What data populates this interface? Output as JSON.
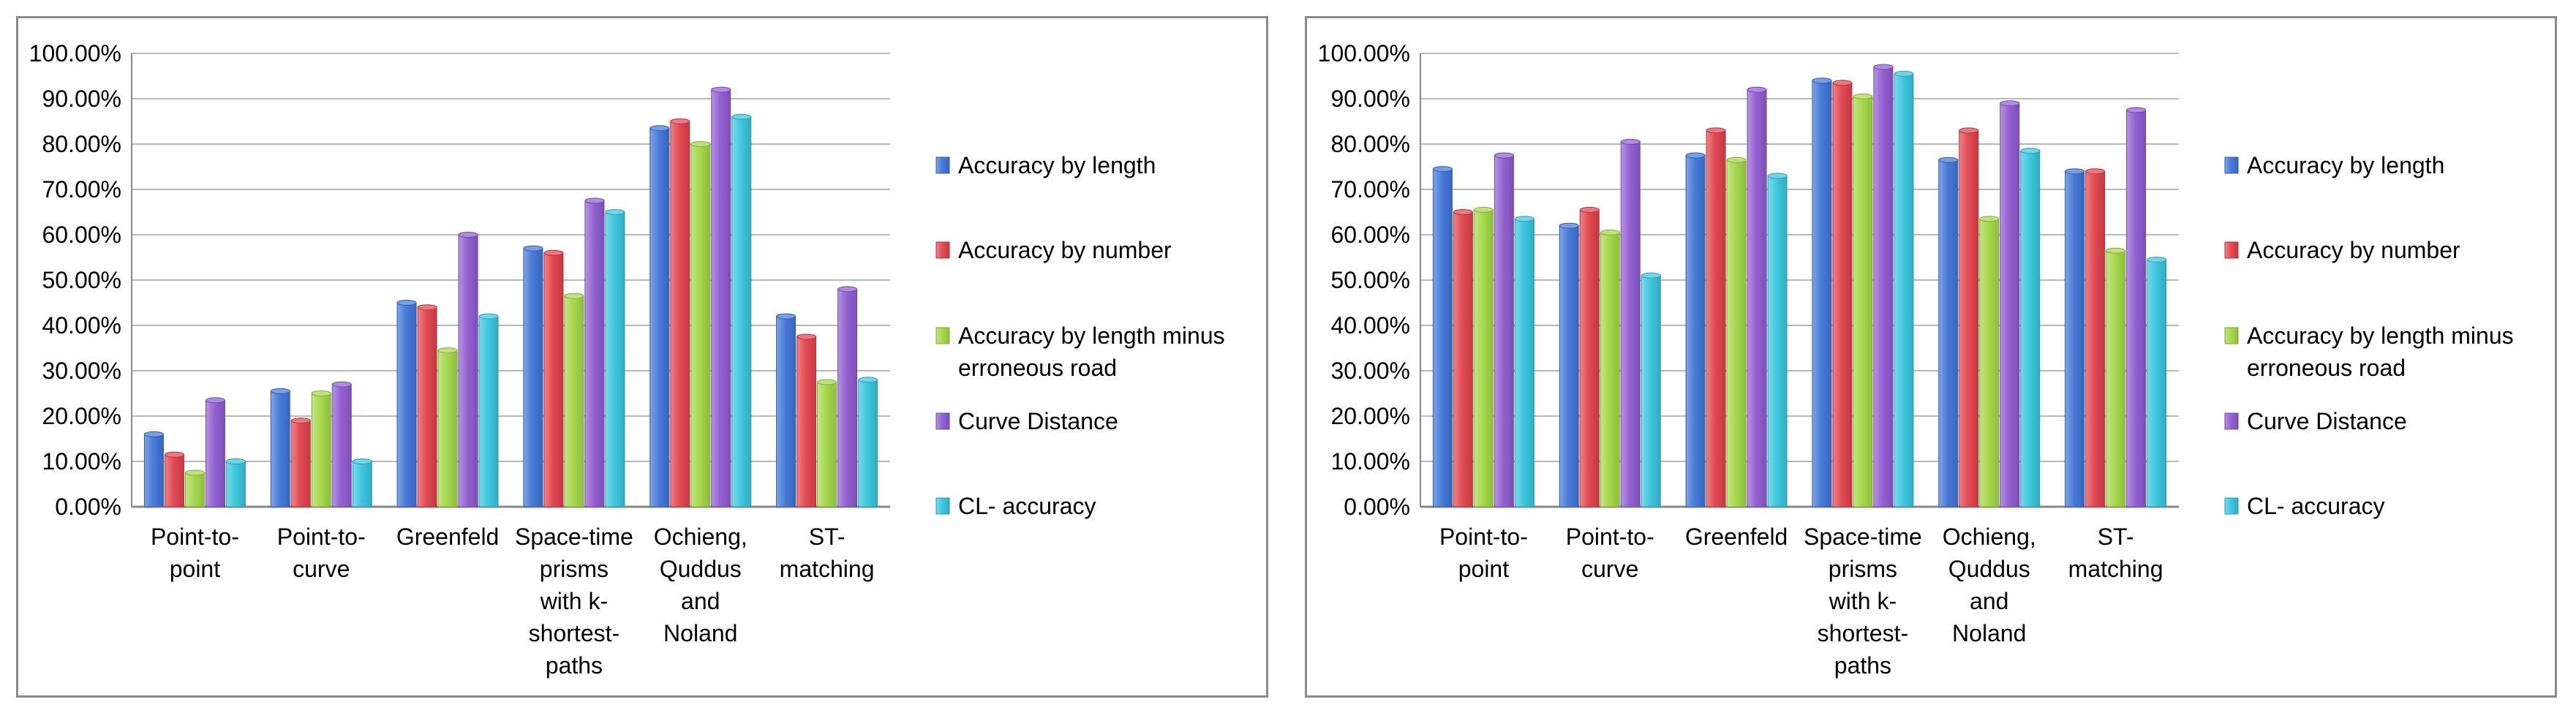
{
  "colors": {
    "Accuracy by length": "#3f74d6",
    "Accuracy by number": "#e0414b",
    "Accuracy by length minus erroneous road": "#a3d646",
    "Curve Distance": "#8e5ad0",
    "CL- accuracy": "#37c4dd"
  },
  "chart_data": [
    {
      "type": "bar",
      "categories": [
        [
          "Point-to-",
          "point"
        ],
        [
          "Point-to-",
          "curve"
        ],
        [
          "Greenfeld"
        ],
        [
          "Space-time",
          "prisms",
          "with k-",
          "shortest-",
          "paths"
        ],
        [
          "Ochieng,",
          "Quddus",
          "and",
          "Noland"
        ],
        [
          "ST-",
          "matching"
        ]
      ],
      "series": [
        {
          "name": "Accuracy by length",
          "values": [
            0.16,
            0.255,
            0.45,
            0.57,
            0.835,
            0.42
          ]
        },
        {
          "name": "Accuracy by number",
          "values": [
            0.115,
            0.19,
            0.44,
            0.56,
            0.85,
            0.375
          ]
        },
        {
          "name": "Accuracy by length minus erroneous road",
          "values": [
            0.075,
            0.25,
            0.345,
            0.465,
            0.8,
            0.275
          ]
        },
        {
          "name": "Curve Distance",
          "values": [
            0.235,
            0.27,
            0.6,
            0.675,
            0.92,
            0.48
          ]
        },
        {
          "name": "CL- accuracy",
          "values": [
            0.1,
            0.1,
            0.42,
            0.65,
            0.86,
            0.28
          ]
        }
      ],
      "legend_lines": [
        [
          "Accuracy by length"
        ],
        [
          "Accuracy by number"
        ],
        [
          "Accuracy by length minus",
          "erroneous road"
        ],
        [
          "Curve Distance"
        ],
        [
          "CL- accuracy"
        ]
      ],
      "yticks": [
        "0.00%",
        "10.00%",
        "20.00%",
        "30.00%",
        "40.00%",
        "50.00%",
        "60.00%",
        "70.00%",
        "80.00%",
        "90.00%",
        "100.00%"
      ],
      "ylim": [
        0,
        1
      ],
      "grid": true,
      "legend_position": "right"
    },
    {
      "type": "bar",
      "categories": [
        [
          "Point-to-",
          "point"
        ],
        [
          "Point-to-",
          "curve"
        ],
        [
          "Greenfeld"
        ],
        [
          "Space-time",
          "prisms",
          "with k-",
          "shortest-",
          "paths"
        ],
        [
          "Ochieng,",
          "Quddus",
          "and",
          "Noland"
        ],
        [
          "ST-",
          "matching"
        ]
      ],
      "series": [
        {
          "name": "Accuracy by length",
          "values": [
            0.745,
            0.62,
            0.775,
            0.94,
            0.765,
            0.74
          ]
        },
        {
          "name": "Accuracy by number",
          "values": [
            0.65,
            0.655,
            0.83,
            0.935,
            0.83,
            0.74
          ]
        },
        {
          "name": "Accuracy by length minus erroneous road",
          "values": [
            0.655,
            0.605,
            0.765,
            0.905,
            0.635,
            0.565
          ]
        },
        {
          "name": "Curve Distance",
          "values": [
            0.775,
            0.805,
            0.92,
            0.97,
            0.89,
            0.875
          ]
        },
        {
          "name": "CL- accuracy",
          "values": [
            0.635,
            0.51,
            0.73,
            0.955,
            0.785,
            0.545
          ]
        }
      ],
      "legend_lines": [
        [
          "Accuracy by length"
        ],
        [
          "Accuracy by number"
        ],
        [
          "Accuracy by length minus",
          "erroneous road"
        ],
        [
          "Curve Distance"
        ],
        [
          "CL- accuracy"
        ]
      ],
      "yticks": [
        "0.00%",
        "10.00%",
        "20.00%",
        "30.00%",
        "40.00%",
        "50.00%",
        "60.00%",
        "70.00%",
        "80.00%",
        "90.00%",
        "100.00%"
      ],
      "ylim": [
        0,
        1
      ],
      "grid": true,
      "legend_position": "right"
    }
  ]
}
